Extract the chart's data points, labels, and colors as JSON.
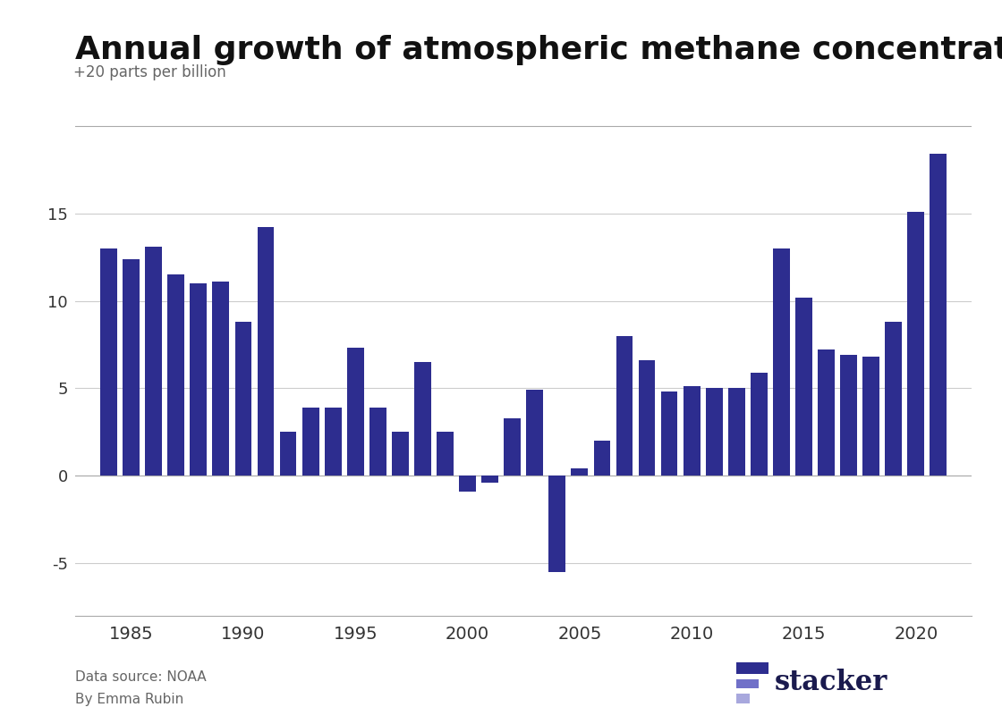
{
  "title": "Annual growth of atmospheric methane concentration",
  "ylabel_text": "+20 parts per billion",
  "years": [
    1984,
    1985,
    1986,
    1987,
    1988,
    1989,
    1990,
    1991,
    1992,
    1993,
    1994,
    1995,
    1996,
    1997,
    1998,
    1999,
    2000,
    2001,
    2002,
    2003,
    2004,
    2005,
    2006,
    2007,
    2008,
    2009,
    2010,
    2011,
    2012,
    2013,
    2014,
    2015,
    2016,
    2017,
    2018,
    2019,
    2020,
    2021
  ],
  "values": [
    13.0,
    12.4,
    13.1,
    11.5,
    11.0,
    11.1,
    8.8,
    14.2,
    2.5,
    3.9,
    3.9,
    7.3,
    3.9,
    2.5,
    6.5,
    2.5,
    -0.9,
    -0.4,
    3.3,
    4.9,
    -5.5,
    0.4,
    2.0,
    8.0,
    6.6,
    4.8,
    5.1,
    5.0,
    5.0,
    5.9,
    13.0,
    10.2,
    7.2,
    6.9,
    6.8,
    8.8,
    15.1,
    18.4
  ],
  "bar_color": "#2d2d8f",
  "background_color": "#ffffff",
  "ylim": [
    -8,
    21
  ],
  "yticks": [
    -5,
    0,
    5,
    10,
    15
  ],
  "xticks": [
    1985,
    1990,
    1995,
    2000,
    2005,
    2010,
    2015,
    2020
  ],
  "xlim": [
    1982.5,
    2022.5
  ],
  "source_line1": "Data source: NOAA",
  "source_line2": "By Emma Rubin",
  "stacker_text": "stacker",
  "title_fontsize": 26,
  "label_fontsize": 13,
  "bar_color_logo1": "#2d2d8f",
  "bar_color_logo2": "#7070c8",
  "bar_color_logo3": "#a8a8dd"
}
